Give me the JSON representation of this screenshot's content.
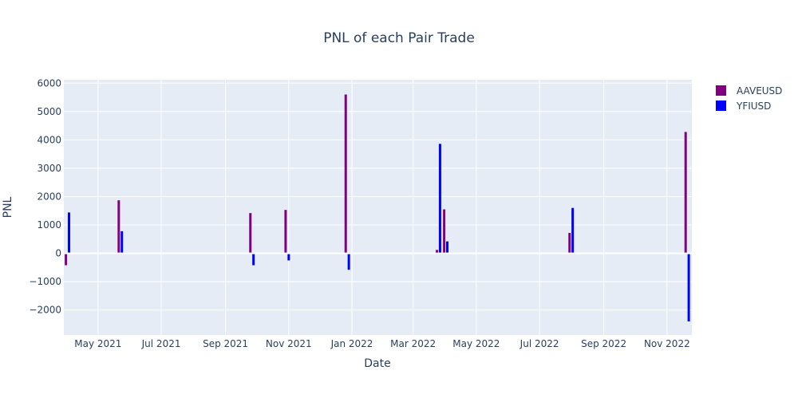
{
  "chart_data": {
    "type": "bar",
    "title": "PNL of each Pair Trade",
    "xlabel": "Date",
    "ylabel": "PNL",
    "x_range": [
      "2021-03-29",
      "2022-11-25"
    ],
    "y_range": [
      -2880,
      6120
    ],
    "x_ticks": [
      {
        "date": "2021-05-01",
        "label": "May 2021"
      },
      {
        "date": "2021-07-01",
        "label": "Jul 2021"
      },
      {
        "date": "2021-09-01",
        "label": "Sep 2021"
      },
      {
        "date": "2021-11-01",
        "label": "Nov 2021"
      },
      {
        "date": "2022-01-01",
        "label": "Jan 2022"
      },
      {
        "date": "2022-03-01",
        "label": "Mar 2022"
      },
      {
        "date": "2022-05-01",
        "label": "May 2022"
      },
      {
        "date": "2022-07-01",
        "label": "Jul 2022"
      },
      {
        "date": "2022-09-01",
        "label": "Sep 2022"
      },
      {
        "date": "2022-11-01",
        "label": "Nov 2022"
      }
    ],
    "y_ticks": [
      {
        "value": -2000,
        "label": "−2000"
      },
      {
        "value": -1000,
        "label": "−1000"
      },
      {
        "value": 0,
        "label": "0"
      },
      {
        "value": 1000,
        "label": "1000"
      },
      {
        "value": 2000,
        "label": "2000"
      },
      {
        "value": 3000,
        "label": "3000"
      },
      {
        "value": 4000,
        "label": "4000"
      },
      {
        "value": 5000,
        "label": "5000"
      },
      {
        "value": 6000,
        "label": "6000"
      }
    ],
    "grid": true,
    "legend_position": "top-right",
    "series": [
      {
        "name": "AAVEUSD",
        "color": "#800080",
        "points": [
          {
            "x": "2021-03-31",
            "y": -420
          },
          {
            "x": "2021-05-21",
            "y": 1870
          },
          {
            "x": "2021-09-25",
            "y": 1420
          },
          {
            "x": "2021-10-29",
            "y": 1530
          },
          {
            "x": "2021-12-26",
            "y": 5600
          },
          {
            "x": "2022-03-24",
            "y": 120
          },
          {
            "x": "2022-03-31",
            "y": 1550
          },
          {
            "x": "2022-07-30",
            "y": 720
          },
          {
            "x": "2022-11-19",
            "y": 4280
          }
        ]
      },
      {
        "name": "YFIUSD",
        "color": "#0000ff",
        "points": [
          {
            "x": "2021-04-03",
            "y": 1440
          },
          {
            "x": "2021-05-24",
            "y": 780
          },
          {
            "x": "2021-09-28",
            "y": -420
          },
          {
            "x": "2021-11-01",
            "y": -250
          },
          {
            "x": "2021-12-29",
            "y": -580
          },
          {
            "x": "2022-03-27",
            "y": 3860
          },
          {
            "x": "2022-04-03",
            "y": 420
          },
          {
            "x": "2022-08-02",
            "y": 1600
          },
          {
            "x": "2022-11-22",
            "y": -2400
          }
        ]
      }
    ]
  }
}
